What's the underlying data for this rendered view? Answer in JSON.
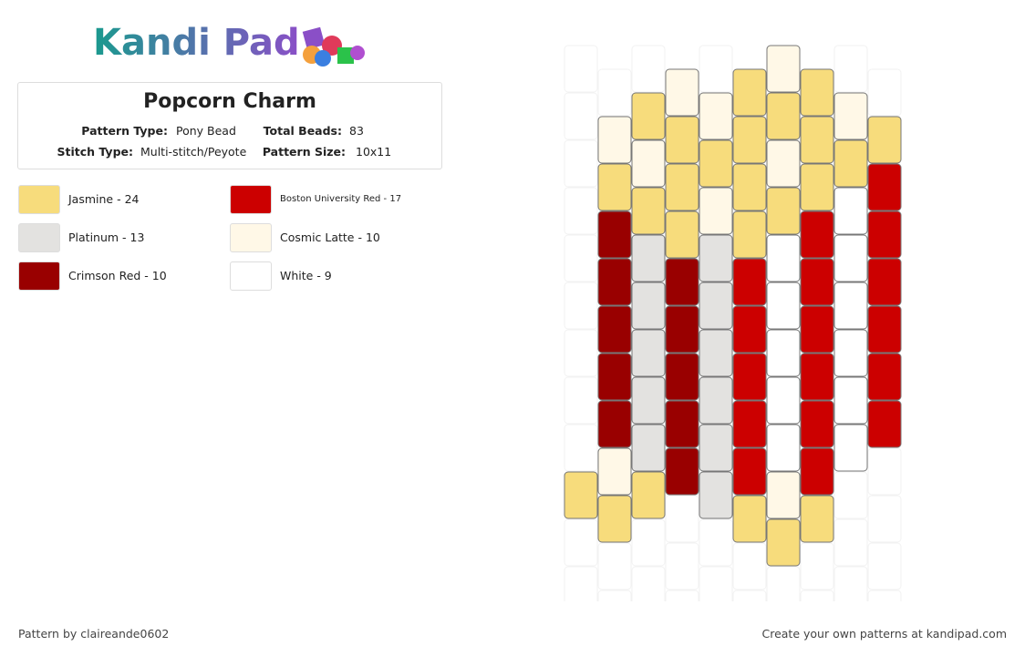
{
  "logo": "Kandi Pad",
  "header": {
    "title": "Popcorn Charm",
    "fields": [
      {
        "label": "Pattern Type:",
        "value": "Pony Bead"
      },
      {
        "label": "Total Beads:",
        "value": "83"
      },
      {
        "label": "Stitch Type:",
        "value": "Multi-stitch/Peyote"
      },
      {
        "label": "Pattern Size:",
        "value": "10x11"
      }
    ]
  },
  "legend": [
    {
      "label": "Jasmine - 24",
      "color": "#f7dc7c"
    },
    {
      "label": "Boston University Red - 17",
      "color": "#cc0000"
    },
    {
      "label": "Platinum - 13",
      "color": "#e3e2e0"
    },
    {
      "label": "Cosmic Latte - 10",
      "color": "#fff8e7"
    },
    {
      "label": "Crimson Red - 10",
      "color": "#990000"
    },
    {
      "label": "White - 9",
      "color": "#ffffff"
    }
  ],
  "footer": {
    "author": "Pattern by claireande0602",
    "promo": "Create your own patterns at kandipad.com"
  }
}
